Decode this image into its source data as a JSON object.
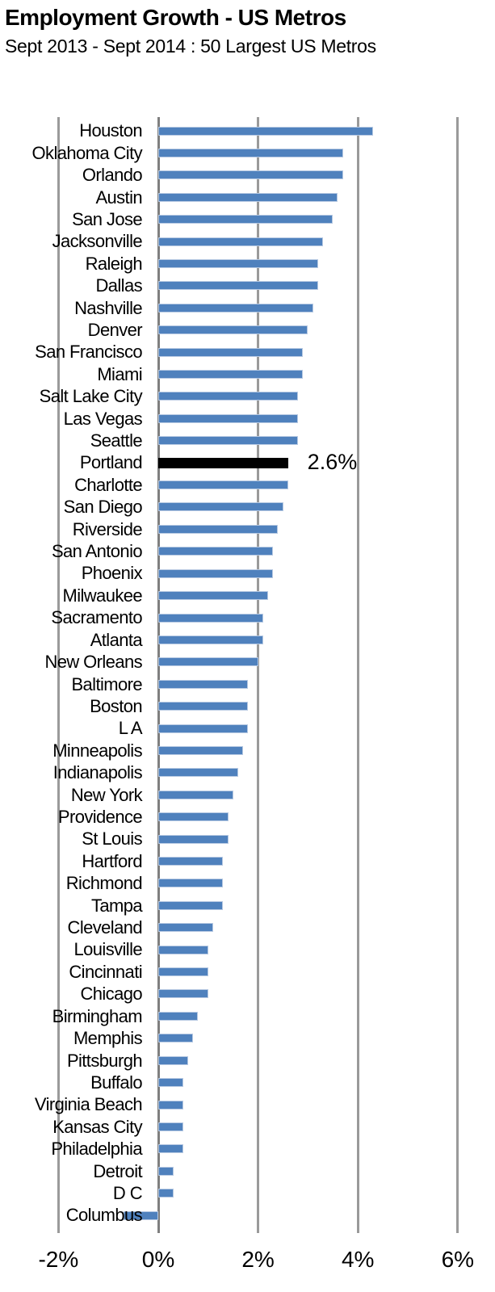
{
  "header": {
    "title": "Employment Growth - US Metros",
    "subtitle": "Sept 2013 - Sept 2014 : 50 Largest US Metros"
  },
  "chart_data": {
    "type": "bar",
    "orientation": "horizontal",
    "title": "Employment Growth - US Metros",
    "subtitle": "Sept 2013 - Sept 2014 : 50 Largest US Metros",
    "xlabel": "",
    "ylabel": "",
    "unit": "%",
    "xlim": [
      -2,
      6
    ],
    "grid": "vertical",
    "legend": false,
    "bar_color": "#4F81BD",
    "gridline_color": "#9a9a9a",
    "zero_line_color": "#7f7f7f",
    "x_ticks": [
      {
        "label": "-2%",
        "value": -2
      },
      {
        "label": "0%",
        "value": 0
      },
      {
        "label": "2%",
        "value": 2
      },
      {
        "label": "4%",
        "value": 4
      },
      {
        "label": "6%",
        "value": 6
      }
    ],
    "categories": [
      "Houston",
      "Oklahoma City",
      "Orlando",
      "Austin",
      "San Jose",
      "Jacksonville",
      "Raleigh",
      "Dallas",
      "Nashville",
      "Denver",
      "San Francisco",
      "Miami",
      "Salt Lake City",
      "Las Vegas",
      "Seattle",
      "Portland",
      "Charlotte",
      "San Diego",
      "Riverside",
      "San Antonio",
      "Phoenix",
      "Milwaukee",
      "Sacramento",
      "Atlanta",
      "New Orleans",
      "Baltimore",
      "Boston",
      "L A",
      "Minneapolis",
      "Indianapolis",
      "New York",
      "Providence",
      "St Louis",
      "Hartford",
      "Richmond",
      "Tampa",
      "Cleveland",
      "Louisville",
      "Cincinnati",
      "Chicago",
      "Birmingham",
      "Memphis",
      "Pittsburgh",
      "Buffalo",
      "Virginia Beach",
      "Kansas City",
      "Philadelphia",
      "Detroit",
      "D C",
      "Columbus"
    ],
    "values": [
      4.3,
      3.7,
      3.7,
      3.6,
      3.5,
      3.3,
      3.2,
      3.2,
      3.1,
      3.0,
      2.9,
      2.9,
      2.8,
      2.8,
      2.8,
      2.6,
      2.6,
      2.5,
      2.4,
      2.3,
      2.3,
      2.2,
      2.1,
      2.1,
      2.0,
      1.8,
      1.8,
      1.8,
      1.7,
      1.6,
      1.5,
      1.4,
      1.4,
      1.3,
      1.3,
      1.3,
      1.1,
      1.0,
      1.0,
      1.0,
      0.8,
      0.7,
      0.6,
      0.5,
      0.5,
      0.5,
      0.5,
      0.3,
      0.3,
      -0.7
    ],
    "highlight": {
      "category": "Portland",
      "value": 2.6,
      "color": "#000000",
      "label": "2.6%"
    }
  }
}
